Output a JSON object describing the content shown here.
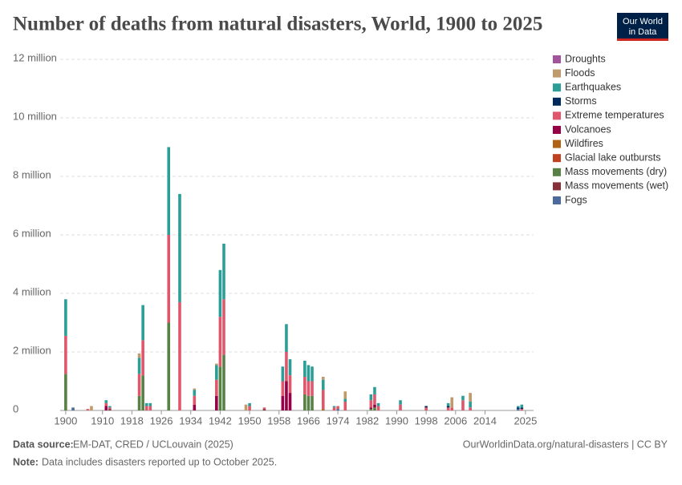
{
  "logo": {
    "line1": "Our World",
    "line2": "in Data"
  },
  "chart_data": {
    "type": "stacked-bar",
    "title": "Number of deaths from natural disasters, World, 1900 to 2025",
    "source_label": "Data source:",
    "source": "EM-DAT, CRED / UCLouvain (2025)",
    "note_label": "Note:",
    "note": "Data includes disasters reported up to October 2025.",
    "credit": "OurWorldinData.org/natural-disasters | CC BY",
    "x": [
      1900,
      1902,
      1906,
      1907,
      1911,
      1912,
      1920,
      1921,
      1922,
      1923,
      1928,
      1931,
      1935,
      1941,
      1942,
      1943,
      1949,
      1950,
      1954,
      1959,
      1960,
      1961,
      1965,
      1966,
      1967,
      1970,
      1973,
      1974,
      1976,
      1983,
      1984,
      1985,
      1991,
      1998,
      2004,
      2005,
      2008,
      2010,
      2023,
      2024
    ],
    "xlim": [
      1898.5,
      2027.2
    ],
    "xticks": [
      1900,
      1910,
      1918,
      1926,
      1934,
      1942,
      1950,
      1958,
      1966,
      1974,
      1982,
      1990,
      1998,
      2006,
      2014,
      2025
    ],
    "ylim": [
      0,
      12000000
    ],
    "yticks": [
      {
        "value": 0,
        "label": "0"
      },
      {
        "value": 2000000,
        "label": "2 million"
      },
      {
        "value": 4000000,
        "label": "4 million"
      },
      {
        "value": 6000000,
        "label": "6 million"
      },
      {
        "value": 8000000,
        "label": "8 million"
      },
      {
        "value": 10000000,
        "label": "10 million"
      },
      {
        "value": 12000000,
        "label": "12 million"
      }
    ],
    "grid": true,
    "legend": "right",
    "series": [
      {
        "name": "Droughts",
        "color": "#a2559c",
        "values": [
          0,
          0,
          0,
          0,
          0,
          0,
          0,
          0,
          0,
          0,
          0,
          0,
          0,
          0,
          0,
          0,
          0,
          0,
          0,
          0,
          0,
          0,
          0,
          0,
          0,
          0,
          0,
          0,
          0,
          0,
          0,
          0,
          0,
          0,
          0,
          0,
          0,
          0,
          0,
          0
        ]
      },
      {
        "name": "Floods",
        "color": "#c19a6b",
        "values": [
          0,
          0,
          0,
          150000,
          0,
          0,
          150000,
          0,
          0,
          0,
          0,
          0,
          50000,
          50000,
          0,
          0,
          200000,
          0,
          0,
          0,
          0,
          0,
          0,
          0,
          0,
          100000,
          0,
          0,
          250000,
          0,
          0,
          0,
          0,
          0,
          0,
          350000,
          0,
          300000,
          0,
          0
        ]
      },
      {
        "name": "Earthquakes",
        "color": "#2c9e98",
        "values": [
          1250000,
          0,
          0,
          0,
          100000,
          50000,
          550000,
          1200000,
          100000,
          100000,
          3000000,
          3700000,
          200000,
          500000,
          1600000,
          1900000,
          0,
          100000,
          0,
          500000,
          950000,
          550000,
          550000,
          550000,
          500000,
          350000,
          50000,
          0,
          100000,
          200000,
          250000,
          100000,
          150000,
          0,
          100000,
          0,
          150000,
          200000,
          50000,
          100000
        ]
      },
      {
        "name": "Storms",
        "color": "#00295b",
        "values": [
          0,
          0,
          0,
          0,
          0,
          0,
          0,
          0,
          0,
          0,
          0,
          0,
          0,
          0,
          0,
          0,
          0,
          0,
          0,
          0,
          0,
          0,
          0,
          0,
          0,
          0,
          0,
          0,
          0,
          0,
          0,
          0,
          0,
          50000,
          50000,
          0,
          0,
          0,
          50000,
          50000
        ]
      },
      {
        "name": "Extreme temperatures",
        "color": "#e0566b",
        "values": [
          1300000,
          0,
          50000,
          0,
          100000,
          50000,
          750000,
          1200000,
          150000,
          150000,
          3000000,
          3700000,
          300000,
          550000,
          1700000,
          1900000,
          0,
          150000,
          50000,
          500000,
          1000000,
          600000,
          600000,
          500000,
          500000,
          650000,
          100000,
          100000,
          300000,
          250000,
          350000,
          150000,
          200000,
          100000,
          100000,
          100000,
          350000,
          100000,
          0,
          50000
        ]
      },
      {
        "name": "Volcanoes",
        "color": "#970046",
        "values": [
          0,
          0,
          0,
          0,
          150000,
          0,
          0,
          0,
          0,
          0,
          0,
          0,
          200000,
          500000,
          0,
          0,
          0,
          0,
          0,
          500000,
          1000000,
          600000,
          0,
          0,
          0,
          0,
          0,
          0,
          0,
          50000,
          100000,
          0,
          0,
          0,
          0,
          0,
          0,
          0,
          0,
          0
        ]
      },
      {
        "name": "Wildfires",
        "color": "#b16214",
        "values": [
          0,
          0,
          0,
          0,
          0,
          0,
          0,
          0,
          0,
          0,
          0,
          0,
          0,
          0,
          0,
          0,
          0,
          0,
          0,
          0,
          0,
          0,
          0,
          0,
          0,
          50000,
          0,
          0,
          0,
          0,
          0,
          0,
          0,
          0,
          0,
          0,
          0,
          0,
          0,
          0
        ]
      },
      {
        "name": "Glacial lake outbursts",
        "color": "#c0401f",
        "values": [
          0,
          0,
          0,
          0,
          0,
          0,
          0,
          0,
          0,
          0,
          0,
          0,
          0,
          0,
          0,
          0,
          0,
          0,
          0,
          0,
          0,
          0,
          0,
          0,
          0,
          0,
          0,
          0,
          0,
          0,
          0,
          0,
          0,
          0,
          0,
          0,
          0,
          0,
          0,
          0
        ]
      },
      {
        "name": "Mass movements (dry)",
        "color": "#578145",
        "values": [
          1250000,
          0,
          0,
          0,
          0,
          0,
          500000,
          1200000,
          0,
          0,
          3000000,
          0,
          0,
          0,
          1500000,
          1900000,
          0,
          0,
          0,
          0,
          0,
          0,
          550000,
          500000,
          500000,
          0,
          0,
          0,
          0,
          50000,
          100000,
          0,
          0,
          0,
          0,
          0,
          0,
          0,
          0,
          0
        ]
      },
      {
        "name": "Mass movements (wet)",
        "color": "#883039",
        "values": [
          0,
          0,
          0,
          0,
          0,
          50000,
          0,
          0,
          0,
          0,
          0,
          0,
          0,
          0,
          0,
          0,
          0,
          0,
          50000,
          0,
          0,
          0,
          0,
          0,
          0,
          0,
          0,
          0,
          0,
          0,
          0,
          0,
          0,
          0,
          0,
          0,
          0,
          0,
          0,
          0
        ]
      },
      {
        "name": "Fogs",
        "color": "#4c6a9c",
        "values": [
          0,
          100000,
          0,
          0,
          0,
          0,
          0,
          0,
          0,
          0,
          0,
          0,
          0,
          0,
          0,
          0,
          0,
          0,
          0,
          0,
          0,
          0,
          0,
          0,
          0,
          0,
          0,
          50000,
          0,
          0,
          0,
          0,
          0,
          0,
          0,
          0,
          0,
          0,
          50000,
          0
        ]
      }
    ]
  }
}
